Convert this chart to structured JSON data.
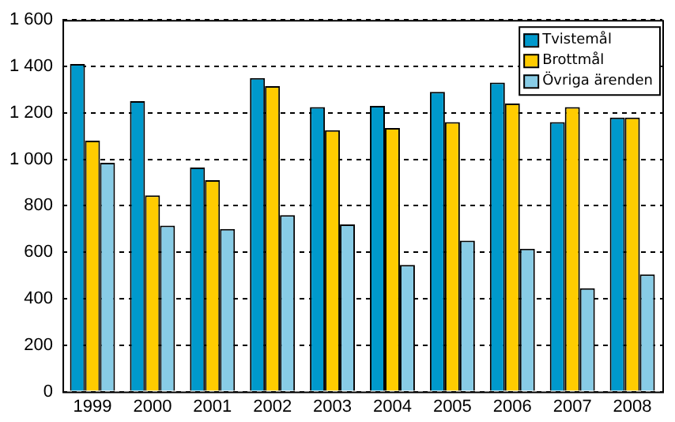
{
  "chart_data": {
    "type": "bar",
    "categories": [
      "1999",
      "2000",
      "2001",
      "2002",
      "2003",
      "2004",
      "2005",
      "2006",
      "2007",
      "2008"
    ],
    "series": [
      {
        "name": "Tvistemål",
        "color": "#0099cc",
        "values": [
          1410,
          1250,
          965,
          1350,
          1225,
          1230,
          1290,
          1330,
          1160,
          1180
        ]
      },
      {
        "name": "Brottmål",
        "color": "#ffcc00",
        "values": [
          1080,
          845,
          910,
          1315,
          1125,
          1135,
          1160,
          1240,
          1225,
          1180
        ]
      },
      {
        "name": "Övriga ärenden",
        "color": "#88cce6",
        "values": [
          985,
          715,
          700,
          760,
          720,
          545,
          650,
          615,
          445,
          505
        ]
      }
    ],
    "ylim": [
      0,
      1600
    ],
    "yticks": [
      0,
      200,
      400,
      600,
      800,
      {
        "value": 1000,
        "label": "1 000"
      },
      {
        "value": 1200,
        "label": "1 200"
      },
      {
        "value": 1400,
        "label": "1 400"
      },
      {
        "value": 1600,
        "label": "1 600"
      }
    ],
    "grid": "y",
    "line_style": "dashed",
    "legend": "top right"
  }
}
